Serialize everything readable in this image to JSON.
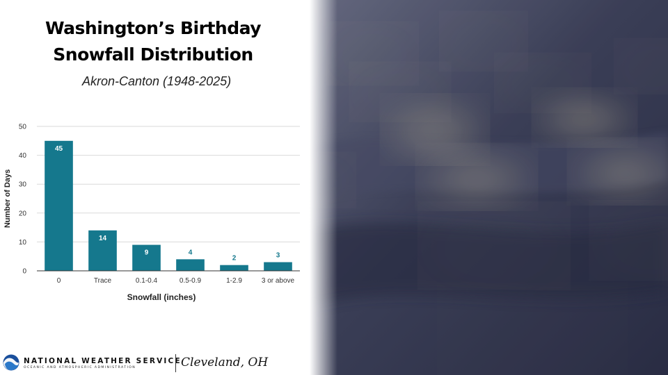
{
  "slide": {
    "title_line1": "Washington’s Birthday",
    "title_line2": "Snowfall Distribution",
    "subtitle": "Akron-Canton (1948-2025)"
  },
  "chart_data": {
    "type": "bar",
    "categories": [
      "0",
      "Trace",
      "0.1-0.4",
      "0.5-0.9",
      "1-2.9",
      "3 or above"
    ],
    "values": [
      45,
      14,
      9,
      4,
      2,
      3
    ],
    "data_labels": [
      "45",
      "14",
      "9",
      "4",
      "2",
      "3"
    ],
    "xlabel": "Snowfall (inches)",
    "ylabel": "Number of Days",
    "ylim": [
      0,
      50
    ],
    "yticks": [
      0,
      10,
      20,
      30,
      40,
      50
    ],
    "grid": true,
    "bar_color": "#15788d",
    "label_color_inside": "#ffffff",
    "label_color_outside": "#15788d"
  },
  "footer": {
    "agency_name": "NATIONAL WEATHER SERVICE",
    "agency_sub": "OCEANIC AND ATMOSPHERIC ADMINISTRATION",
    "office": "Cleveland, OH",
    "logo_icon": "noaa-logo-icon"
  },
  "photo": {
    "icon": "american-flag-stars-photo",
    "background_color": "#3d4058",
    "star_color": "#e8dcae"
  }
}
